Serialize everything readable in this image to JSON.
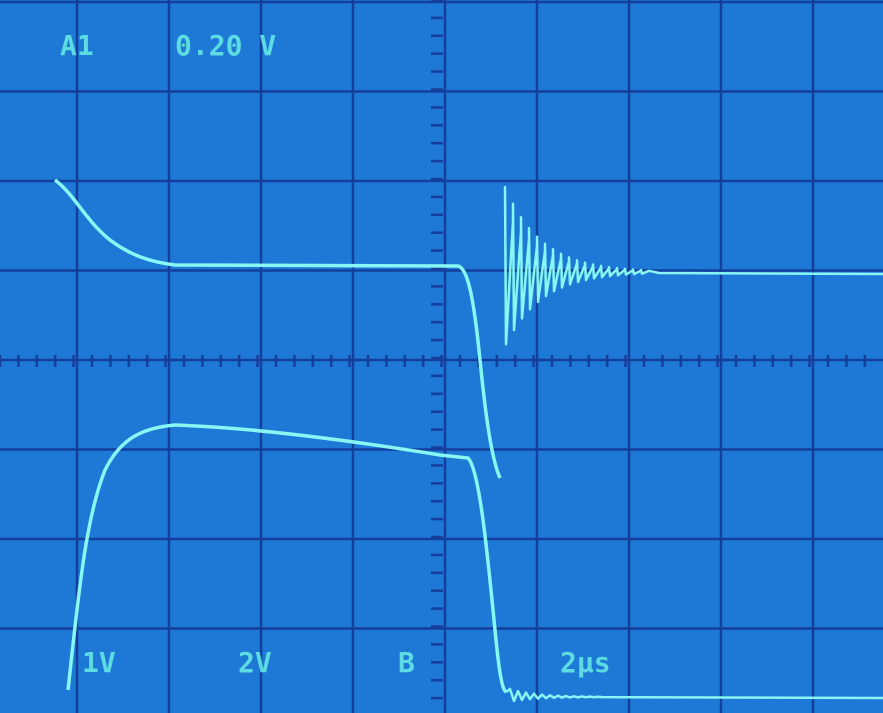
{
  "screen": {
    "channel": "A1",
    "scale": "0.20 V",
    "ch1_scale": "1V",
    "ch2_scale": "2V",
    "trigger": "B",
    "timebase": "2µs"
  }
}
